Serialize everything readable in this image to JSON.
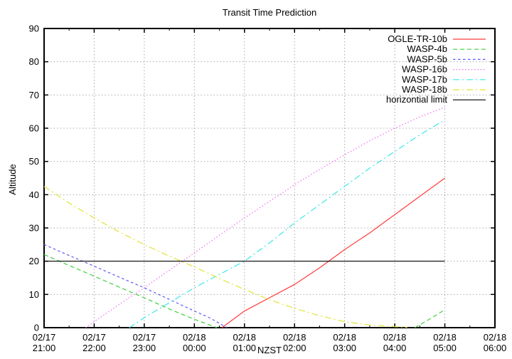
{
  "chart_data": {
    "type": "line",
    "title": "Transit Time Prediction",
    "xlabel": "NZST",
    "ylabel": "Altitude",
    "x_axis_note": "x values are hours after 02/17 21:00 NZST, major ticks every hour, minor every 30 min",
    "xlim": [
      0,
      9
    ],
    "ylim": [
      0,
      90
    ],
    "grid": true,
    "legend_position": "inside top-right, no box",
    "x_tick_labels": [
      {
        "date": "02/17",
        "time": "21:00"
      },
      {
        "date": "02/17",
        "time": "22:00"
      },
      {
        "date": "02/17",
        "time": "23:00"
      },
      {
        "date": "02/18",
        "time": "00:00"
      },
      {
        "date": "02/18",
        "time": "01:00"
      },
      {
        "date": "02/18",
        "time": "02:00"
      },
      {
        "date": "02/18",
        "time": "03:00"
      },
      {
        "date": "02/18",
        "time": "04:00"
      },
      {
        "date": "02/18",
        "time": "05:00"
      },
      {
        "date": "02/18",
        "time": "06:00"
      }
    ],
    "y_ticks": [
      0,
      10,
      20,
      30,
      40,
      50,
      60,
      70,
      80,
      90
    ],
    "series": [
      {
        "name": "OGLE-TR-10b",
        "color": "#ff3c3c",
        "dash": "",
        "segments": [
          [
            [
              3.55,
              0
            ],
            [
              4,
              5
            ],
            [
              4.5,
              9
            ],
            [
              5,
              13
            ],
            [
              5.5,
              18
            ],
            [
              6,
              23.5
            ],
            [
              6.5,
              28.5
            ],
            [
              7,
              34
            ],
            [
              7.5,
              39.5
            ],
            [
              8,
              45
            ]
          ]
        ]
      },
      {
        "name": "WASP-4b",
        "color": "#3ecf3e",
        "dash": "6 4",
        "segments": [
          [
            [
              0,
              22
            ],
            [
              0.5,
              18.7
            ],
            [
              1,
              15.5
            ],
            [
              1.5,
              12.2
            ],
            [
              2,
              9
            ],
            [
              2.5,
              5.6
            ],
            [
              3,
              2.5
            ],
            [
              3.45,
              0
            ]
          ],
          [
            [
              7.4,
              0
            ],
            [
              7.7,
              2.6
            ],
            [
              8,
              5.4
            ]
          ]
        ]
      },
      {
        "name": "WASP-5b",
        "color": "#5858ff",
        "dash": "3.5 3.5",
        "segments": [
          [
            [
              0,
              25
            ],
            [
              0.5,
              21.7
            ],
            [
              1,
              18.5
            ],
            [
              1.5,
              15.2
            ],
            [
              2,
              12
            ],
            [
              2.5,
              8.5
            ],
            [
              3,
              5
            ],
            [
              3.3,
              3
            ],
            [
              3.65,
              0
            ]
          ]
        ]
      },
      {
        "name": "WASP-16b",
        "color": "#f06cf0",
        "dash": "1.5 2.8",
        "segments": [
          [
            [
              0.83,
              0
            ],
            [
              1,
              1.8
            ],
            [
              1.5,
              7
            ],
            [
              2,
              12
            ],
            [
              2.5,
              17.3
            ],
            [
              3,
              22.5
            ],
            [
              3.5,
              27.8
            ],
            [
              4,
              33
            ],
            [
              4.5,
              38
            ],
            [
              5,
              43
            ],
            [
              5.5,
              47.6
            ],
            [
              6,
              52
            ],
            [
              6.5,
              56.2
            ],
            [
              7,
              60
            ],
            [
              7.5,
              63.4
            ],
            [
              8,
              66.3
            ]
          ]
        ]
      },
      {
        "name": "WASP-17b",
        "color": "#3ce8e8",
        "dash": "9 4 2 4",
        "segments": [
          [
            [
              1.7,
              0
            ],
            [
              2,
              3
            ],
            [
              2.5,
              7.5
            ],
            [
              3,
              12
            ],
            [
              3.5,
              16
            ],
            [
              4,
              20
            ],
            [
              4.5,
              25.5
            ],
            [
              5,
              31.5
            ],
            [
              5.5,
              37
            ],
            [
              6,
              42.5
            ],
            [
              6.5,
              48
            ],
            [
              7,
              53
            ],
            [
              7.5,
              58
            ],
            [
              8,
              62.5
            ]
          ]
        ]
      },
      {
        "name": "WASP-18b",
        "color": "#e3e332",
        "dash": "9 4 2 4",
        "segments": [
          [
            [
              0,
              42.5
            ],
            [
              0.5,
              37.5
            ],
            [
              1,
              33
            ],
            [
              1.5,
              28.8
            ],
            [
              2,
              25
            ],
            [
              2.5,
              21.5
            ],
            [
              3,
              18.3
            ],
            [
              3.5,
              14.8
            ],
            [
              4,
              11.5
            ],
            [
              4.5,
              8.4
            ],
            [
              5,
              5.8
            ],
            [
              5.5,
              3.6
            ],
            [
              6,
              1.8
            ],
            [
              6.5,
              0.8
            ],
            [
              7,
              0.3
            ],
            [
              7.25,
              0.1
            ]
          ]
        ]
      },
      {
        "name": "horizontial limit",
        "color": "#000000",
        "dash": "",
        "segments": [
          [
            [
              0,
              20
            ],
            [
              8,
              20
            ]
          ]
        ]
      }
    ]
  },
  "colors": {
    "background": "#ffffff",
    "grid": "#a8a8a8",
    "axis": "#000000"
  }
}
